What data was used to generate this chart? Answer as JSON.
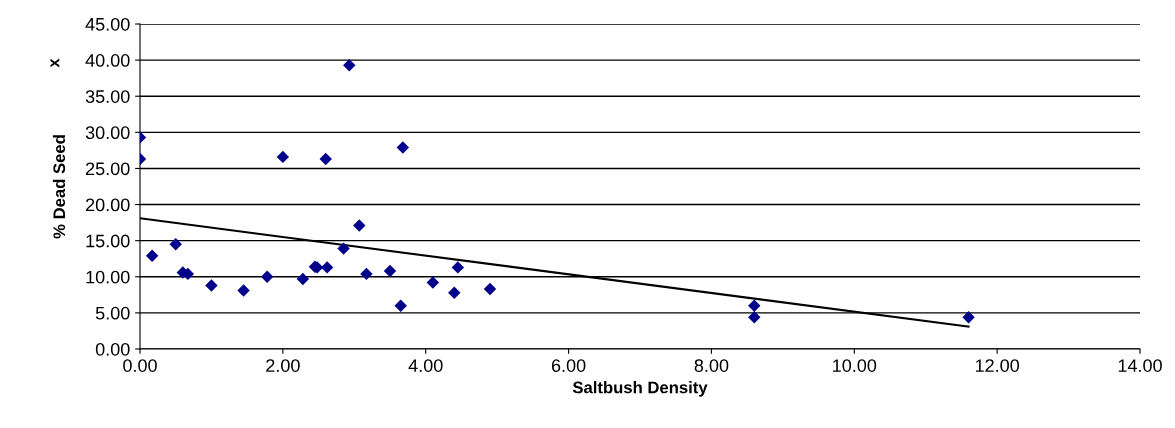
{
  "chart_data": {
    "type": "scatter",
    "xlabel": "Saltbush Density",
    "ylabel": "% Dead Seed",
    "annotations": [
      "x"
    ],
    "series": [
      {
        "color": "#00008b",
        "marker": "diamond",
        "x": [
          0,
          0,
          0.17,
          0.5,
          0.6,
          0.67,
          1.0,
          1.45,
          1.78,
          2.0,
          2.28,
          2.45,
          2.48,
          2.6,
          2.62,
          2.85,
          2.93,
          3.07,
          3.17,
          3.5,
          3.65,
          3.68,
          4.1,
          4.4,
          4.45,
          4.9,
          8.6,
          8.6,
          11.6
        ],
        "values": [
          29.3,
          26.3,
          12.9,
          14.5,
          10.6,
          10.4,
          8.8,
          8.1,
          10.0,
          26.6,
          9.7,
          11.4,
          11.3,
          26.3,
          11.3,
          13.9,
          39.3,
          17.1,
          10.4,
          10.8,
          6.0,
          27.9,
          9.2,
          7.8,
          11.3,
          8.3,
          6.0,
          4.4,
          4.4
        ]
      },
      {
        "type": "line",
        "color": "#000000",
        "x": [
          0,
          11.6
        ],
        "values": [
          18.1,
          3.1
        ]
      }
    ],
    "xlim": [
      0,
      14
    ],
    "xticks": [
      {
        "value": 0,
        "label": "0.00"
      },
      {
        "value": 2,
        "label": "2.00"
      },
      {
        "value": 4,
        "label": "4.00"
      },
      {
        "value": 6,
        "label": "6.00"
      },
      {
        "value": 8,
        "label": "8.00"
      },
      {
        "value": 10,
        "label": "10.00"
      },
      {
        "value": 12,
        "label": "12.00"
      },
      {
        "value": 14,
        "label": "14.00"
      }
    ],
    "ylim": [
      0,
      45
    ],
    "yticks": [
      {
        "value": 0,
        "label": "0.00"
      },
      {
        "value": 5,
        "label": "5.00"
      },
      {
        "value": 10,
        "label": "10.00"
      },
      {
        "value": 15,
        "label": "15.00"
      },
      {
        "value": 20,
        "label": "20.00"
      },
      {
        "value": 25,
        "label": "25.00"
      },
      {
        "value": 30,
        "label": "30.00"
      },
      {
        "value": 35,
        "label": "35.00"
      },
      {
        "value": 40,
        "label": "40.00"
      },
      {
        "value": 45,
        "label": "45.00"
      }
    ],
    "grid": "y",
    "legend": false
  }
}
